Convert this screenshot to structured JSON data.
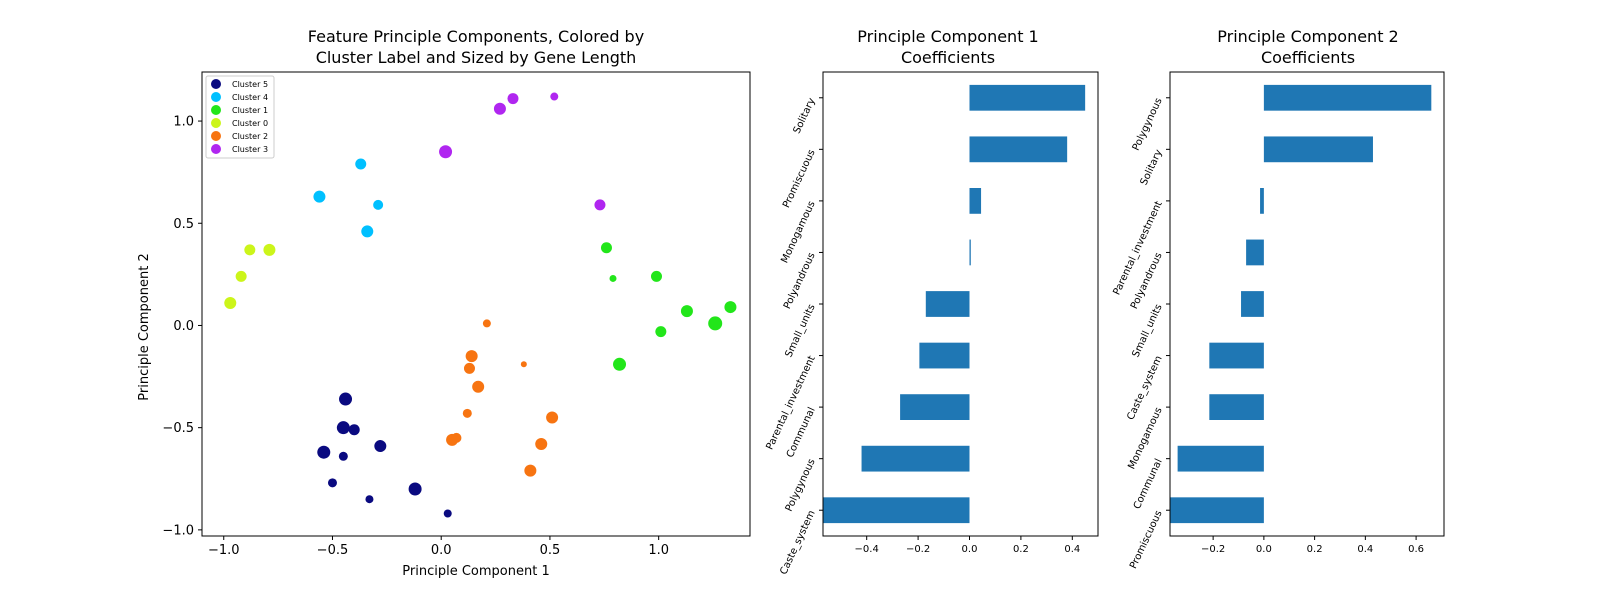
{
  "chart_data": [
    {
      "type": "scatter",
      "title_lines": [
        "Feature Principle Components, Colored by",
        "Cluster Label and Sized by Gene Length"
      ],
      "xlabel": "Principle Component 1",
      "ylabel": "Principle Component 2",
      "xlim": [
        -1.1,
        1.42
      ],
      "ylim": [
        -1.03,
        1.24
      ],
      "xticks": [
        -1.0,
        -0.5,
        0.0,
        0.5,
        1.0
      ],
      "yticks": [
        -1.0,
        -0.5,
        0.0,
        0.5,
        1.0
      ],
      "legend_position": "upper-left",
      "series": [
        {
          "name": "Cluster 5",
          "color": "#0a0a80",
          "points": [
            {
              "x": -0.44,
              "y": -0.36,
              "s": 6.5
            },
            {
              "x": -0.45,
              "y": -0.5,
              "s": 6.5
            },
            {
              "x": -0.4,
              "y": -0.51,
              "s": 5.5
            },
            {
              "x": -0.54,
              "y": -0.62,
              "s": 6.5
            },
            {
              "x": -0.45,
              "y": -0.64,
              "s": 4.5
            },
            {
              "x": -0.28,
              "y": -0.59,
              "s": 6.0
            },
            {
              "x": -0.5,
              "y": -0.77,
              "s": 4.5
            },
            {
              "x": -0.33,
              "y": -0.85,
              "s": 4.0
            },
            {
              "x": -0.12,
              "y": -0.8,
              "s": 6.5
            },
            {
              "x": 0.03,
              "y": -0.92,
              "s": 4.0
            }
          ]
        },
        {
          "name": "Cluster 4",
          "color": "#00c0ff",
          "points": [
            {
              "x": -0.56,
              "y": 0.63,
              "s": 6.0
            },
            {
              "x": -0.37,
              "y": 0.79,
              "s": 5.5
            },
            {
              "x": -0.29,
              "y": 0.59,
              "s": 5.0
            },
            {
              "x": -0.34,
              "y": 0.46,
              "s": 6.0
            }
          ]
        },
        {
          "name": "Cluster 1",
          "color": "#22e61a",
          "points": [
            {
              "x": 0.76,
              "y": 0.38,
              "s": 5.5
            },
            {
              "x": 0.79,
              "y": 0.23,
              "s": 3.5
            },
            {
              "x": 0.99,
              "y": 0.24,
              "s": 5.5
            },
            {
              "x": 1.13,
              "y": 0.07,
              "s": 6.0
            },
            {
              "x": 1.33,
              "y": 0.09,
              "s": 6.0
            },
            {
              "x": 1.26,
              "y": 0.01,
              "s": 7.0
            },
            {
              "x": 1.01,
              "y": -0.03,
              "s": 5.5
            },
            {
              "x": 0.82,
              "y": -0.19,
              "s": 6.5
            }
          ]
        },
        {
          "name": "Cluster 0",
          "color": "#ccf51a",
          "points": [
            {
              "x": -0.88,
              "y": 0.37,
              "s": 5.5
            },
            {
              "x": -0.79,
              "y": 0.37,
              "s": 6.0
            },
            {
              "x": -0.92,
              "y": 0.24,
              "s": 5.5
            },
            {
              "x": -0.97,
              "y": 0.11,
              "s": 6.0
            }
          ]
        },
        {
          "name": "Cluster 2",
          "color": "#f77411",
          "points": [
            {
              "x": 0.21,
              "y": 0.01,
              "s": 4.0
            },
            {
              "x": 0.38,
              "y": -0.19,
              "s": 3.0
            },
            {
              "x": 0.14,
              "y": -0.15,
              "s": 6.0
            },
            {
              "x": 0.13,
              "y": -0.21,
              "s": 5.5
            },
            {
              "x": 0.17,
              "y": -0.3,
              "s": 6.0
            },
            {
              "x": 0.12,
              "y": -0.43,
              "s": 4.5
            },
            {
              "x": 0.51,
              "y": -0.45,
              "s": 6.0
            },
            {
              "x": 0.05,
              "y": -0.56,
              "s": 6.0
            },
            {
              "x": 0.07,
              "y": -0.55,
              "s": 5.0
            },
            {
              "x": 0.46,
              "y": -0.58,
              "s": 6.0
            },
            {
              "x": 0.41,
              "y": -0.71,
              "s": 6.0
            }
          ]
        },
        {
          "name": "Cluster 3",
          "color": "#b026f0",
          "points": [
            {
              "x": 0.33,
              "y": 1.11,
              "s": 5.5
            },
            {
              "x": 0.27,
              "y": 1.06,
              "s": 6.0
            },
            {
              "x": 0.52,
              "y": 1.12,
              "s": 4.0
            },
            {
              "x": 0.02,
              "y": 0.85,
              "s": 6.5
            },
            {
              "x": 0.73,
              "y": 0.59,
              "s": 5.5
            }
          ]
        }
      ]
    },
    {
      "type": "bar",
      "orientation": "horizontal",
      "title_lines": [
        "Principle Component 1",
        "Coefficients"
      ],
      "xlim": [
        -0.57,
        0.5
      ],
      "xticks": [
        -0.4,
        -0.2,
        0.0,
        0.2,
        0.4
      ],
      "categories": [
        "Solitary",
        "Promiscuous",
        "Monogamous",
        "Polyandrous",
        "Small_units",
        "Parental_investment",
        "Communal",
        "Polygynous",
        "Caste_system"
      ],
      "values": [
        0.45,
        0.38,
        0.045,
        0.005,
        -0.17,
        -0.195,
        -0.27,
        -0.42,
        -0.57
      ],
      "color": "#1f77b4"
    },
    {
      "type": "bar",
      "orientation": "horizontal",
      "title_lines": [
        "Principle Component 2",
        "Coefficients"
      ],
      "xlim": [
        -0.37,
        0.71
      ],
      "xticks": [
        -0.2,
        0.0,
        0.2,
        0.4,
        0.6
      ],
      "categories": [
        "Polygynous",
        "Solitary",
        "Parental_investment",
        "Polyandrous",
        "Small_units",
        "Caste_system",
        "Monogamous",
        "Communal",
        "Promiscuous"
      ],
      "values": [
        0.66,
        0.43,
        -0.015,
        -0.07,
        -0.09,
        -0.215,
        -0.215,
        -0.34,
        -0.37
      ],
      "color": "#1f77b4"
    }
  ]
}
